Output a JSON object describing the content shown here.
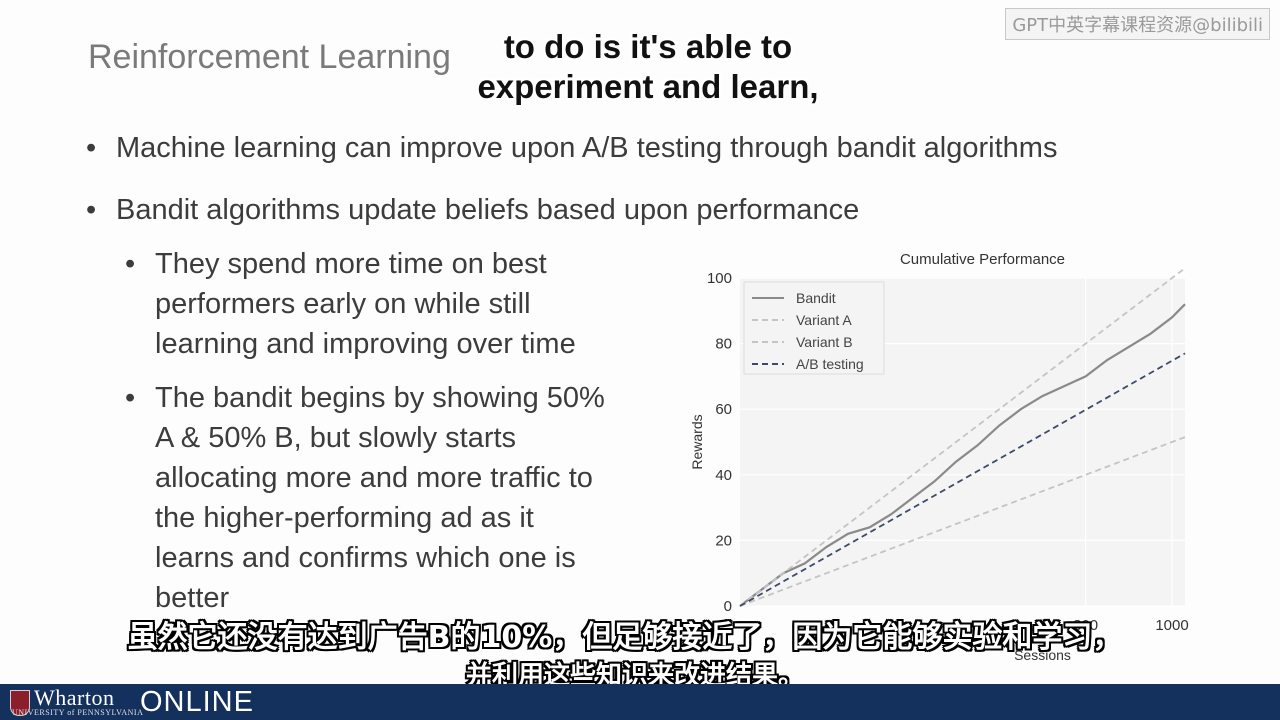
{
  "watermark": "GPT中英字幕课程资源@bilibili",
  "slide": {
    "title": "Reinforcement Learning",
    "bullets": [
      "Machine learning can improve upon A/B testing through bandit algorithms",
      "Bandit algorithms update beliefs based upon performance"
    ],
    "sub_bullets": [
      "They spend more time on best performers early on while still learning and improving over time",
      "The bandit begins by showing 50% A & 50% B, but slowly starts allocating more and more traffic to the higher-performing ad as it learns and confirms which one is better"
    ]
  },
  "captions": {
    "en_line1": "to do is it's able to",
    "en_line2": "experiment and learn,",
    "zh_line1": "虽然它还没有达到广告B的10%，但足够接近了，因为它能够实验和学习，",
    "zh_line2": "并利用这些知识来改进结果。"
  },
  "footer": {
    "brand": "Wharton",
    "university": "UNIVERSITY of PENNSYLVANIA",
    "online": "ONLINE"
  },
  "colors": {
    "footer_bg": "#14305c",
    "bandit": "#8a8a8a",
    "variant_a": "#c4c4c4",
    "variant_b": "#c4c4c4",
    "ab_testing": "#3d4a6a"
  },
  "chart_data": {
    "type": "line",
    "title": "Cumulative Performance",
    "xlabel": "Sessions",
    "ylabel": "Rewards",
    "xlim": [
      0,
      1030
    ],
    "ylim": [
      0,
      100
    ],
    "xticks": [
      "800",
      "1000"
    ],
    "xtick_values": [
      800,
      1000
    ],
    "yticks": [
      "0",
      "20",
      "40",
      "60",
      "80",
      "100"
    ],
    "ytick_values": [
      0,
      20,
      40,
      60,
      80,
      100
    ],
    "legend": "top-left",
    "series": [
      {
        "name": "Bandit",
        "style": "solid",
        "x": [
          0,
          50,
          100,
          150,
          200,
          250,
          300,
          350,
          400,
          450,
          500,
          550,
          600,
          650,
          700,
          750,
          800,
          850,
          900,
          950,
          1000,
          1030
        ],
        "y": [
          0,
          5,
          10,
          13,
          18,
          22,
          24,
          28,
          33,
          38,
          44,
          49,
          55,
          60,
          64,
          67,
          70,
          75,
          79,
          83,
          88,
          92
        ]
      },
      {
        "name": "Variant A",
        "style": "dashed",
        "x": [
          0,
          1030
        ],
        "y": [
          0,
          103
        ]
      },
      {
        "name": "Variant B",
        "style": "dashed",
        "x": [
          0,
          1030
        ],
        "y": [
          0,
          51.5
        ]
      },
      {
        "name": "A/B testing",
        "style": "dashed",
        "x": [
          0,
          1030
        ],
        "y": [
          0,
          77
        ]
      }
    ]
  }
}
